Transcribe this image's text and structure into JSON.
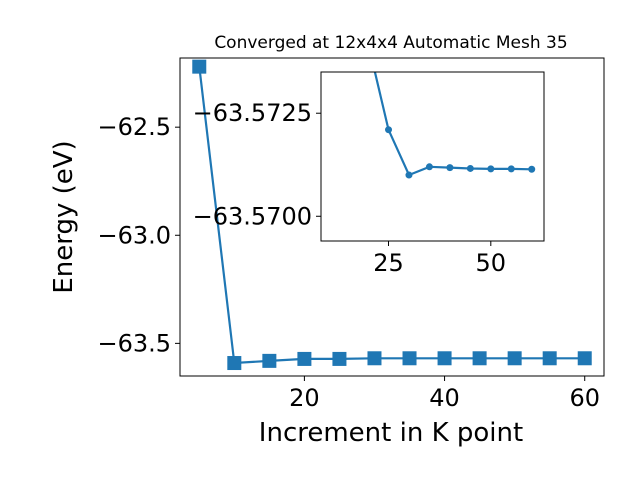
{
  "chart_data": [
    {
      "type": "line",
      "title": "Converged at 12x4x4 Automatic Mesh 35",
      "xlabel": "Increment in K point",
      "ylabel": "Energy (eV)",
      "xlim": [
        2.25,
        62.75
      ],
      "ylim": [
        -63.651,
        -62.18
      ],
      "x_ticks": [
        {
          "value": 20,
          "label": "20"
        },
        {
          "value": 40,
          "label": "40"
        },
        {
          "value": 60,
          "label": "60"
        }
      ],
      "y_ticks": [
        {
          "value": -62.5,
          "label": "−62.5"
        },
        {
          "value": -63.0,
          "label": "−63.0"
        },
        {
          "value": -63.5,
          "label": "−63.5"
        }
      ],
      "grid": false,
      "colors": {
        "line": "#1f77b4"
      },
      "marker": "square",
      "series": [
        {
          "x": [
            5,
            10,
            15,
            20,
            25,
            30,
            35,
            40,
            45,
            50,
            55,
            60
          ],
          "y": [
            -62.22,
            -63.591,
            -63.581,
            -63.572,
            -63.572,
            -63.569,
            -63.569,
            -63.569,
            -63.569,
            -63.569,
            -63.569,
            -63.569
          ]
        }
      ]
    },
    {
      "type": "line",
      "inset": true,
      "title": "",
      "xlabel": "",
      "ylabel": "",
      "xlim": [
        8.5,
        63
      ],
      "ylim": [
        -63.5694,
        -63.5735
      ],
      "x_ticks": [
        {
          "value": 25,
          "label": "25"
        },
        {
          "value": 50,
          "label": "50"
        }
      ],
      "y_ticks": [
        {
          "value": -63.5725,
          "label": "−63.5725"
        },
        {
          "value": -63.57,
          "label": "−63.5700"
        }
      ],
      "grid": false,
      "colors": {
        "line": "#1f77b4"
      },
      "marker": "circle",
      "series": [
        {
          "x": [
            20,
            25,
            30,
            35,
            40,
            45,
            50,
            55,
            60
          ],
          "y": [
            -63.5742,
            -63.5721,
            -63.571,
            -63.5712,
            -63.57118,
            -63.57116,
            -63.57115,
            -63.57115,
            -63.57114
          ]
        }
      ]
    }
  ]
}
